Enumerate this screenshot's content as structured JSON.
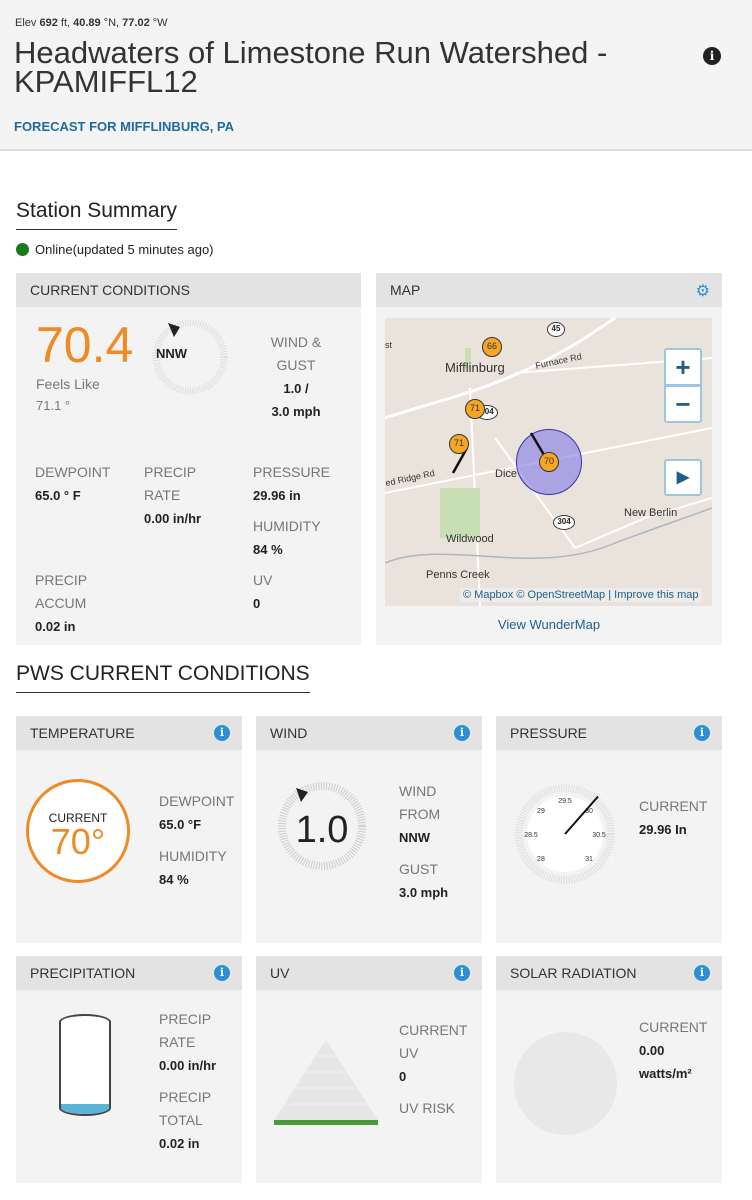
{
  "header": {
    "elev_prefix": "Elev ",
    "elev": "692",
    "elev_unit": " ft, ",
    "lat": "40.89",
    "lat_unit": " °N, ",
    "lon": "77.02",
    "lon_unit": " °W",
    "title": "Headwaters of Limestone Run Watershed - KPAMIFFL12",
    "forecast_link": "FORECAST FOR MIFFLINBURG, PA",
    "info_icon": "info-icon"
  },
  "summary": {
    "heading": "Station Summary",
    "status": "Online(updated 5 minutes ago)",
    "status_color": "#1a7a1a"
  },
  "current": {
    "header": "CURRENT CONDITIONS",
    "temp": "70.4",
    "temp_unit": "°F",
    "feels_label": "Feels Like",
    "feels": "71.1 °",
    "wind_dir": "NNW",
    "wind_label1": "WIND &",
    "wind_label2": "GUST",
    "wind": "1.0 /",
    "gust": "3.0 mph",
    "dew_label": "DEWPOINT",
    "dew": "65.0  ° F",
    "prate_label1": "PRECIP",
    "prate_label2": "RATE",
    "prate": "0.00  in/hr",
    "press_label": "PRESSURE",
    "press": "29.96  in",
    "hum_label": "HUMIDITY",
    "hum": "84  %",
    "accum_label1": "PRECIP",
    "accum_label2": "ACCUM",
    "accum": "0.02  in",
    "uv_label": "UV",
    "uv": "0",
    "accent": "#f08a24"
  },
  "map": {
    "header": "MAP",
    "places": [
      "Mifflinburg",
      "Furnace Rd",
      "ed Ridge Rd",
      "Dice",
      "New Berlin",
      "Wildwood",
      "Penns Creek",
      "st"
    ],
    "routes": [
      "45",
      "304",
      "304"
    ],
    "pins": [
      "66",
      "71",
      "71",
      "70"
    ],
    "zoom_in": "+",
    "zoom_out": "−",
    "play": "▶",
    "attribution": "© Mapbox © OpenStreetMap | Improve this map",
    "view_link": "View WunderMap"
  },
  "pws": {
    "heading": "PWS CURRENT CONDITIONS",
    "temperature": {
      "header": "TEMPERATURE",
      "current_label": "CURRENT",
      "current": "70°",
      "dew_label": "DEWPOINT",
      "dew": "65.0 °F",
      "hum_label": "HUMIDITY",
      "hum": "84 %"
    },
    "wind": {
      "header": "WIND",
      "speed": "1.0",
      "from_label1": "WIND",
      "from_label2": "FROM",
      "from": "NNW",
      "gust_label": "GUST",
      "gust": "3.0 mph"
    },
    "pressure": {
      "header": "PRESSURE",
      "current_label": "CURRENT",
      "current": "29.96 In",
      "ticks": [
        "28",
        "28.5",
        "29",
        "29.5",
        "30",
        "30.5",
        "31"
      ],
      "value": 29.96
    },
    "precipitation": {
      "header": "PRECIPITATION",
      "rate_label1": "PRECIP",
      "rate_label2": "RATE",
      "rate": "0.00 in/hr",
      "total_label1": "PRECIP",
      "total_label2": "TOTAL",
      "total": "0.02 in",
      "fill": 0.1
    },
    "uv": {
      "header": "UV",
      "current_label1": "CURRENT",
      "current_label2": "UV",
      "current": "0",
      "risk_label": "UV RISK"
    },
    "solar": {
      "header": "SOLAR RADIATION",
      "current_label": "CURRENT",
      "current": "0.00",
      "unit": "watts/m²"
    }
  }
}
